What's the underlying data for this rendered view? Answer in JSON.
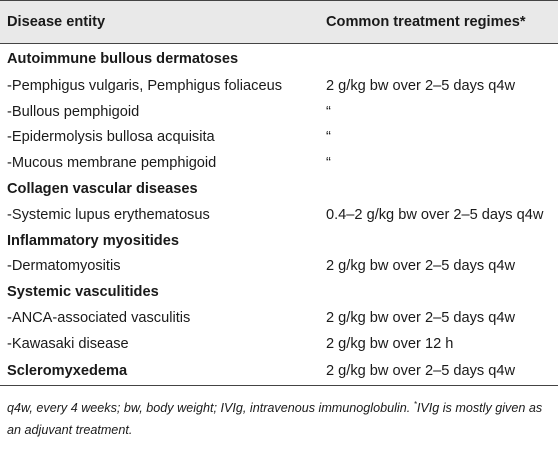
{
  "table": {
    "headers": [
      "Disease entity",
      "Common treatment regimes*"
    ],
    "rows": [
      {
        "disease": "Autoimmune bullous dermatoses",
        "regime": "",
        "group": true
      },
      {
        "disease": "-Pemphigus vulgaris, Pemphigus foliaceus",
        "regime": "2 g/kg bw over 2–5 days q4w",
        "group": false
      },
      {
        "disease": "-Bullous pemphigoid",
        "regime": "“",
        "group": false
      },
      {
        "disease": "-Epidermolysis bullosa acquisita",
        "regime": "“",
        "group": false
      },
      {
        "disease": "-Mucous membrane pemphigoid",
        "regime": "“",
        "group": false
      },
      {
        "disease": "Collagen vascular diseases",
        "regime": "",
        "group": true
      },
      {
        "disease": "-Systemic lupus erythematosus",
        "regime": "0.4–2 g/kg bw over 2–5 days q4w",
        "group": false
      },
      {
        "disease": "Inflammatory myositides",
        "regime": "",
        "group": true
      },
      {
        "disease": "-Dermatomyositis",
        "regime": "2 g/kg bw over 2–5 days q4w",
        "group": false
      },
      {
        "disease": "Systemic vasculitides",
        "regime": "",
        "group": true
      },
      {
        "disease": "-ANCA-associated vasculitis",
        "regime": "2 g/kg bw over 2–5 days q4w",
        "group": false
      },
      {
        "disease": "-Kawasaki disease",
        "regime": "2 g/kg bw over 12 h",
        "group": false
      },
      {
        "disease": "Scleromyxedema",
        "regime": "2 g/kg bw over 2–5 days q4w",
        "group": true
      }
    ]
  },
  "footnote": {
    "text": "q4w, every 4 weeks; bw, body weight; IVIg, intravenous immunoglobulin. ",
    "marker": "*",
    "text2": "IVIg is mostly given as an adjuvant treatment."
  }
}
